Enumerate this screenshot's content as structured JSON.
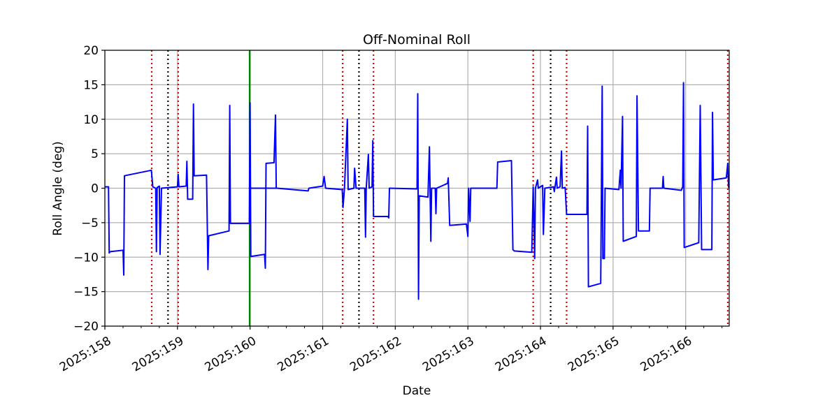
{
  "chart_data": {
    "type": "line",
    "title": "Off-Nominal Roll",
    "xlabel": "Date",
    "ylabel": "Roll Angle (deg)",
    "xlim": [
      158.0,
      166.6
    ],
    "ylim": [
      -20,
      20
    ],
    "grid": true,
    "x_ticks": [
      {
        "value": 158,
        "label": "2025:158"
      },
      {
        "value": 159,
        "label": "2025:159"
      },
      {
        "value": 160,
        "label": "2025:160"
      },
      {
        "value": 161,
        "label": "2025:161"
      },
      {
        "value": 162,
        "label": "2025:162"
      },
      {
        "value": 163,
        "label": "2025:163"
      },
      {
        "value": 164,
        "label": "2025:164"
      },
      {
        "value": 165,
        "label": "2025:165"
      },
      {
        "value": 166,
        "label": "2025:166"
      }
    ],
    "y_ticks": [
      {
        "value": 20,
        "label": "20"
      },
      {
        "value": 15,
        "label": "15"
      },
      {
        "value": 10,
        "label": "10"
      },
      {
        "value": 5,
        "label": "5"
      },
      {
        "value": 0,
        "label": "0"
      },
      {
        "value": -5,
        "label": "−5"
      },
      {
        "value": -10,
        "label": "−10"
      },
      {
        "value": -15,
        "label": "−15"
      },
      {
        "value": -20,
        "label": "−20"
      }
    ],
    "red_dotted_lines": [
      158.645,
      159.01,
      161.275,
      161.7,
      163.9,
      164.36,
      166.58
    ],
    "black_dotted_lines": [
      158.87,
      161.5,
      164.14
    ],
    "green_solid_lines": [
      159.995
    ],
    "series": [
      {
        "color": "#0000ff",
        "points": [
          [
            158.0,
            0.2
          ],
          [
            158.05,
            0.2
          ],
          [
            158.06,
            -9.4
          ],
          [
            158.07,
            -9.2
          ],
          [
            158.25,
            -9.0
          ],
          [
            158.26,
            -12.6
          ],
          [
            158.27,
            1.8
          ],
          [
            158.64,
            2.6
          ],
          [
            158.66,
            0.2
          ],
          [
            158.7,
            0.0
          ],
          [
            158.71,
            -9.2
          ],
          [
            158.72,
            0.1
          ],
          [
            158.75,
            0.3
          ],
          [
            158.76,
            -9.6
          ],
          [
            158.78,
            0.0
          ],
          [
            159.0,
            0.2
          ],
          [
            159.01,
            2.0
          ],
          [
            159.02,
            0.2
          ],
          [
            159.12,
            0.3
          ],
          [
            159.13,
            3.9
          ],
          [
            159.14,
            -1.6
          ],
          [
            159.21,
            -1.6
          ],
          [
            159.22,
            12.2
          ],
          [
            159.23,
            1.8
          ],
          [
            159.4,
            1.9
          ],
          [
            159.42,
            -11.8
          ],
          [
            159.43,
            -6.9
          ],
          [
            159.71,
            -6.2
          ],
          [
            159.72,
            12.0
          ],
          [
            159.73,
            -5.1
          ],
          [
            159.99,
            -5.1
          ],
          [
            160.0,
            12.4
          ],
          [
            160.01,
            -9.9
          ],
          [
            160.2,
            -9.6
          ],
          [
            160.21,
            -11.6
          ],
          [
            160.22,
            3.6
          ],
          [
            160.33,
            3.7
          ],
          [
            160.35,
            10.6
          ],
          [
            160.36,
            0.0
          ],
          [
            159.99,
            0.0
          ],
          [
            160.37,
            0.0
          ],
          [
            160.8,
            -0.4
          ],
          [
            160.81,
            0.0
          ],
          [
            161.0,
            0.3
          ],
          [
            161.02,
            1.7
          ],
          [
            161.04,
            0.0
          ],
          [
            161.27,
            -0.2
          ],
          [
            161.28,
            -2.8
          ],
          [
            161.3,
            0.0
          ],
          [
            161.34,
            10.0
          ],
          [
            161.35,
            -0.2
          ],
          [
            161.43,
            0.0
          ],
          [
            161.44,
            2.9
          ],
          [
            161.46,
            0.0
          ],
          [
            161.58,
            0.0
          ],
          [
            161.59,
            -7.1
          ],
          [
            161.6,
            0.0
          ],
          [
            161.63,
            4.9
          ],
          [
            161.64,
            0.0
          ],
          [
            161.68,
            0.2
          ],
          [
            161.69,
            6.9
          ],
          [
            161.7,
            -4.1
          ],
          [
            161.9,
            -4.1
          ],
          [
            161.91,
            -4.3
          ],
          [
            161.92,
            0.0
          ],
          [
            162.3,
            -0.1
          ],
          [
            162.31,
            13.7
          ],
          [
            162.32,
            -16.1
          ],
          [
            162.33,
            -1.1
          ],
          [
            162.45,
            -1.3
          ],
          [
            162.47,
            6.0
          ],
          [
            162.49,
            -7.7
          ],
          [
            162.5,
            0.0
          ],
          [
            162.55,
            0.0
          ],
          [
            162.56,
            -3.7
          ],
          [
            162.57,
            0.0
          ],
          [
            162.72,
            0.7
          ],
          [
            162.73,
            1.5
          ],
          [
            162.75,
            -5.4
          ],
          [
            162.98,
            -5.2
          ],
          [
            163.0,
            -7.0
          ],
          [
            163.01,
            0.0
          ],
          [
            163.03,
            -4.8
          ],
          [
            163.04,
            0.0
          ],
          [
            163.4,
            0.0
          ],
          [
            163.41,
            3.8
          ],
          [
            163.6,
            4.0
          ],
          [
            163.62,
            -8.9
          ],
          [
            163.64,
            -9.1
          ],
          [
            163.88,
            -9.3
          ],
          [
            163.9,
            0.2
          ],
          [
            163.92,
            -10.2
          ],
          [
            163.93,
            0.0
          ],
          [
            163.96,
            1.2
          ],
          [
            163.97,
            0.0
          ],
          [
            164.03,
            0.4
          ],
          [
            164.04,
            -6.7
          ],
          [
            164.06,
            0.0
          ],
          [
            164.18,
            0.2
          ],
          [
            164.19,
            -0.5
          ],
          [
            164.22,
            1.6
          ],
          [
            164.23,
            0.0
          ],
          [
            164.27,
            0.2
          ],
          [
            164.29,
            5.4
          ],
          [
            164.3,
            0.0
          ],
          [
            164.34,
            0.1
          ],
          [
            164.36,
            -3.8
          ],
          [
            164.64,
            -3.8
          ],
          [
            164.65,
            9.0
          ],
          [
            164.66,
            -14.3
          ],
          [
            164.83,
            -13.8
          ],
          [
            164.85,
            14.8
          ],
          [
            164.86,
            -10.2
          ],
          [
            164.88,
            -10.2
          ],
          [
            164.89,
            0.0
          ],
          [
            165.08,
            -0.2
          ],
          [
            165.1,
            2.6
          ],
          [
            165.11,
            0.0
          ],
          [
            165.13,
            10.4
          ],
          [
            165.14,
            -7.7
          ],
          [
            165.32,
            -7.0
          ],
          [
            165.33,
            13.4
          ],
          [
            165.35,
            -6.2
          ],
          [
            165.5,
            -6.2
          ],
          [
            165.51,
            0.0
          ],
          [
            165.68,
            0.0
          ],
          [
            165.69,
            1.7
          ],
          [
            165.7,
            0.0
          ],
          [
            165.94,
            -0.3
          ],
          [
            165.96,
            0.2
          ],
          [
            165.97,
            15.3
          ],
          [
            165.98,
            -8.6
          ],
          [
            166.18,
            -7.9
          ],
          [
            166.2,
            12.0
          ],
          [
            166.22,
            -8.9
          ],
          [
            166.36,
            -8.9
          ],
          [
            166.37,
            11.0
          ],
          [
            166.38,
            1.2
          ],
          [
            166.56,
            1.5
          ],
          [
            166.58,
            3.6
          ],
          [
            166.59,
            0.2
          ],
          [
            166.6,
            0.0
          ]
        ]
      }
    ]
  }
}
